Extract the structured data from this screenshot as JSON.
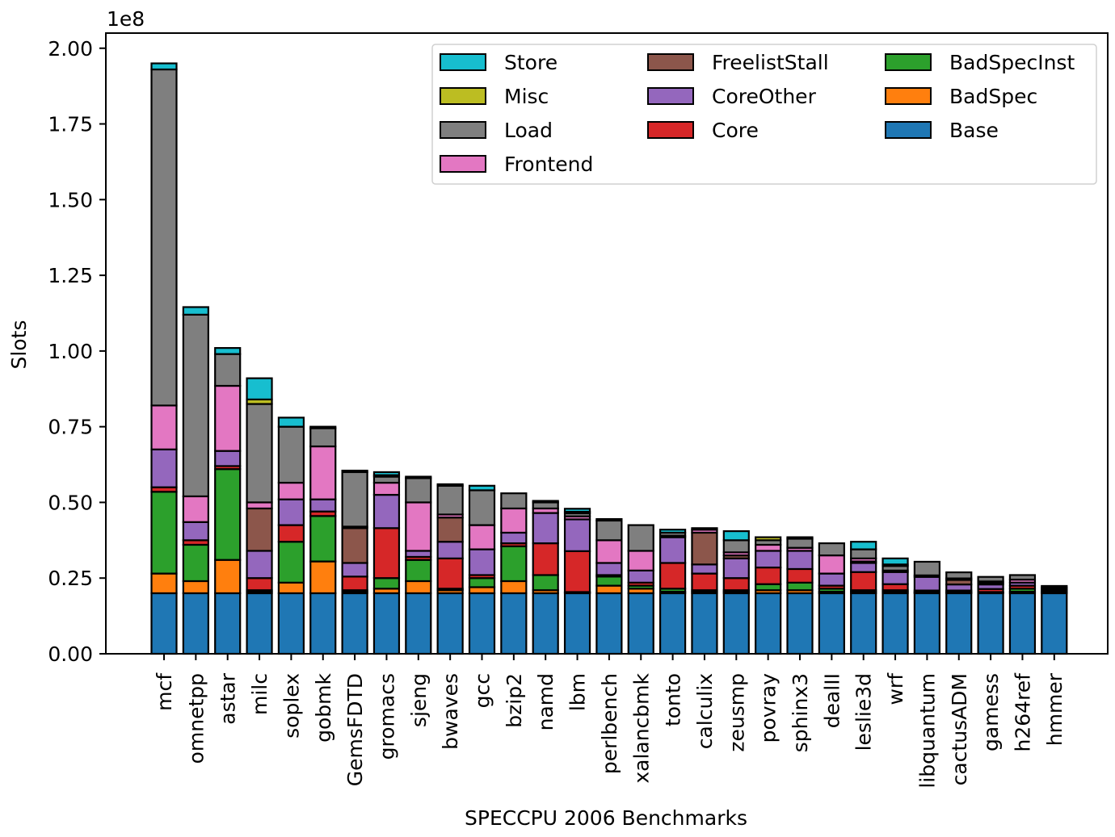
{
  "chart_data": {
    "type": "bar",
    "stacked": true,
    "title": "",
    "xlabel": "SPECCPU 2006 Benchmarks",
    "ylabel": "Slots",
    "y_multiplier_label": "1e8",
    "y_unit_scale": 100000000,
    "ylim": [
      0,
      2.05
    ],
    "yticks": [
      0,
      0.25,
      0.5,
      0.75,
      1.0,
      1.25,
      1.5,
      1.75,
      2.0
    ],
    "ytick_labels": [
      "0.00",
      "0.25",
      "0.50",
      "0.75",
      "1.00",
      "1.25",
      "1.50",
      "1.75",
      "2.00"
    ],
    "grid": false,
    "legend_position": "top-right",
    "legend_columns": [
      [
        "Store",
        "Misc",
        "Load",
        "Frontend"
      ],
      [
        "FreelistStall",
        "CoreOther",
        "Core"
      ],
      [
        "BadSpecInst",
        "BadSpec",
        "Base"
      ]
    ],
    "categories": [
      "mcf",
      "omnetpp",
      "astar",
      "milc",
      "soplex",
      "gobmk",
      "GemsFDTD",
      "gromacs",
      "sjeng",
      "bwaves",
      "gcc",
      "bzip2",
      "namd",
      "lbm",
      "perlbench",
      "xalancbmk",
      "tonto",
      "calculix",
      "zeusmp",
      "povray",
      "sphinx3",
      "dealII",
      "leslie3d",
      "wrf",
      "libquantum",
      "cactusADM",
      "gamess",
      "h264ref",
      "hmmer"
    ],
    "series": [
      {
        "name": "Base",
        "color": "#1f77b4",
        "values": [
          0.2,
          0.2,
          0.2,
          0.2,
          0.2,
          0.2,
          0.2,
          0.2,
          0.2,
          0.2,
          0.2,
          0.2,
          0.2,
          0.2,
          0.2,
          0.2,
          0.2,
          0.2,
          0.2,
          0.2,
          0.2,
          0.2,
          0.2,
          0.2,
          0.2,
          0.2,
          0.2,
          0.2,
          0.2
        ]
      },
      {
        "name": "BadSpec",
        "color": "#ff7f0e",
        "values": [
          0.065,
          0.04,
          0.11,
          0.005,
          0.035,
          0.105,
          0.005,
          0.015,
          0.04,
          0.01,
          0.02,
          0.04,
          0.01,
          0.002,
          0.025,
          0.015,
          0.005,
          0.005,
          0.005,
          0.01,
          0.01,
          0.005,
          0.005,
          0.005,
          0.002,
          0.002,
          0.002,
          0.005,
          0.002
        ]
      },
      {
        "name": "BadSpecInst",
        "color": "#2ca02c",
        "values": [
          0.27,
          0.12,
          0.3,
          0.005,
          0.135,
          0.15,
          0.005,
          0.035,
          0.07,
          0.005,
          0.03,
          0.115,
          0.05,
          0.002,
          0.03,
          0.01,
          0.01,
          0.005,
          0.005,
          0.02,
          0.025,
          0.01,
          0.005,
          0.005,
          0.002,
          0.002,
          0.002,
          0.01,
          0.002
        ]
      },
      {
        "name": "Core",
        "color": "#d62728",
        "values": [
          0.015,
          0.015,
          0.01,
          0.04,
          0.055,
          0.015,
          0.045,
          0.165,
          0.01,
          0.1,
          0.01,
          0.01,
          0.105,
          0.135,
          0.005,
          0.01,
          0.085,
          0.055,
          0.04,
          0.055,
          0.045,
          0.01,
          0.06,
          0.02,
          0.005,
          0.005,
          0.01,
          0.01,
          0.005
        ]
      },
      {
        "name": "CoreOther",
        "color": "#9467bd",
        "values": [
          0.125,
          0.06,
          0.05,
          0.09,
          0.085,
          0.04,
          0.045,
          0.11,
          0.02,
          0.055,
          0.085,
          0.035,
          0.1,
          0.105,
          0.04,
          0.04,
          0.085,
          0.03,
          0.065,
          0.055,
          0.06,
          0.04,
          0.03,
          0.04,
          0.045,
          0.02,
          0.015,
          0.01,
          0.005
        ]
      },
      {
        "name": "FreelistStall",
        "color": "#8c564b",
        "values": [
          0.0,
          0.0,
          0.0,
          0.14,
          0.0,
          0.0,
          0.115,
          0.0,
          0.0,
          0.08,
          0.0,
          0.0,
          0.0,
          0.0,
          0.0,
          0.0,
          0.0,
          0.105,
          0.01,
          0.0,
          0.0,
          0.0,
          0.005,
          0.0,
          0.0,
          0.015,
          0.005,
          0.0,
          0.0
        ]
      },
      {
        "name": "Frontend",
        "color": "#e377c2",
        "values": [
          0.145,
          0.085,
          0.215,
          0.02,
          0.055,
          0.175,
          0.005,
          0.04,
          0.16,
          0.01,
          0.08,
          0.08,
          0.015,
          0.01,
          0.075,
          0.065,
          0.005,
          0.01,
          0.01,
          0.02,
          0.01,
          0.06,
          0.01,
          0.005,
          0.005,
          0.005,
          0.005,
          0.01,
          0.005
        ]
      },
      {
        "name": "Load",
        "color": "#7f7f7f",
        "values": [
          1.11,
          0.6,
          0.105,
          0.325,
          0.185,
          0.06,
          0.18,
          0.02,
          0.08,
          0.095,
          0.115,
          0.05,
          0.02,
          0.01,
          0.065,
          0.085,
          0.01,
          0.005,
          0.04,
          0.015,
          0.03,
          0.04,
          0.03,
          0.015,
          0.045,
          0.02,
          0.015,
          0.015,
          0.005
        ]
      },
      {
        "name": "Misc",
        "color": "#bcbd22",
        "values": [
          0.0,
          0.0,
          0.0,
          0.015,
          0.0,
          0.0,
          0.0,
          0.005,
          0.0,
          0.0,
          0.0,
          0.0,
          0.0,
          0.005,
          0.0,
          0.0,
          0.0,
          0.0,
          0.0,
          0.01,
          0.005,
          0.0,
          0.0,
          0.005,
          0.0,
          0.0,
          0.0,
          0.0,
          0.0
        ]
      },
      {
        "name": "Store",
        "color": "#17becf",
        "values": [
          0.02,
          0.025,
          0.02,
          0.07,
          0.03,
          0.005,
          0.005,
          0.01,
          0.005,
          0.005,
          0.015,
          0.0,
          0.005,
          0.01,
          0.005,
          0.0,
          0.01,
          0.0,
          0.03,
          0.0,
          0.0,
          0.0,
          0.025,
          0.02,
          0.0,
          0.0,
          0.0,
          0.0,
          0.0
        ]
      }
    ]
  }
}
